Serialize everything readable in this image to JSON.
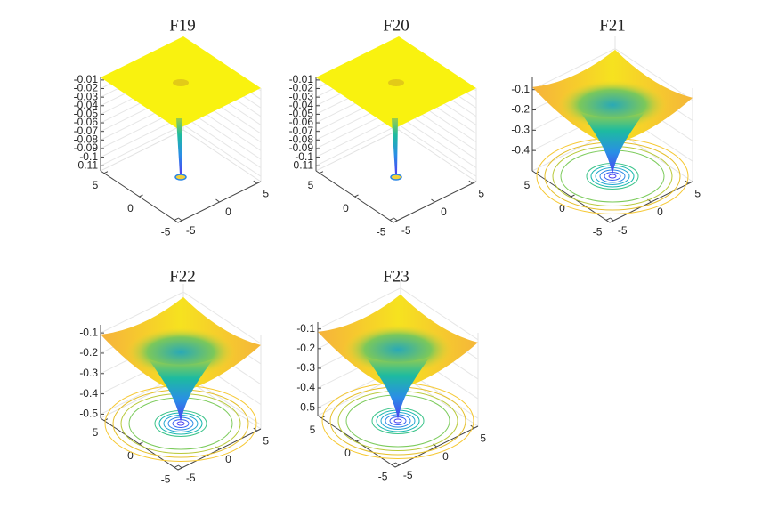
{
  "chart_data": [
    {
      "type": "surface",
      "title": "F19",
      "zlim": [
        -0.116,
        -0.007
      ],
      "zticks": [
        -0.11,
        -0.1,
        -0.09,
        -0.08,
        -0.07,
        -0.06,
        -0.05,
        -0.04,
        -0.03,
        -0.02,
        -0.01
      ],
      "xlim": [
        -5.5,
        5.5
      ],
      "xticks": [
        -5,
        0,
        5
      ],
      "ylim": [
        -5.5,
        5.5
      ],
      "yticks": [
        -5,
        0,
        5
      ],
      "grid": true
    },
    {
      "type": "surface",
      "title": "F20",
      "zlim": [
        -0.116,
        -0.007
      ],
      "zticks": [
        -0.11,
        -0.1,
        -0.09,
        -0.08,
        -0.07,
        -0.06,
        -0.05,
        -0.04,
        -0.03,
        -0.02,
        -0.01
      ],
      "xlim": [
        -5.5,
        5.5
      ],
      "xticks": [
        -5,
        0,
        5
      ],
      "ylim": [
        -5.5,
        5.5
      ],
      "yticks": [
        -5,
        0,
        5
      ],
      "grid": true
    },
    {
      "type": "surface",
      "title": "F21",
      "zlim": [
        -0.5,
        -0.04
      ],
      "zticks": [
        -0.4,
        -0.3,
        -0.2,
        -0.1
      ],
      "xlim": [
        -5.5,
        5.5
      ],
      "xticks": [
        -5,
        0,
        5
      ],
      "ylim": [
        -5.5,
        5.5
      ],
      "yticks": [
        -5,
        0,
        5
      ],
      "grid": true
    },
    {
      "type": "surface",
      "title": "F22",
      "zlim": [
        -0.52,
        -0.06
      ],
      "zticks": [
        -0.5,
        -0.4,
        -0.3,
        -0.2,
        -0.1
      ],
      "xlim": [
        -5.5,
        5.5
      ],
      "xticks": [
        -5,
        0,
        5
      ],
      "ylim": [
        -5.5,
        5.5
      ],
      "yticks": [
        -5,
        0,
        5
      ],
      "grid": true
    },
    {
      "type": "surface",
      "title": "F23",
      "zlim": [
        -0.54,
        -0.065
      ],
      "zticks": [
        -0.5,
        -0.4,
        -0.3,
        -0.2,
        -0.1
      ],
      "xlim": [
        -5.5,
        5.5
      ],
      "xticks": [
        -5,
        0,
        5
      ],
      "ylim": [
        -5.5,
        5.5
      ],
      "yticks": [
        -5,
        0,
        5
      ],
      "grid": true
    }
  ]
}
